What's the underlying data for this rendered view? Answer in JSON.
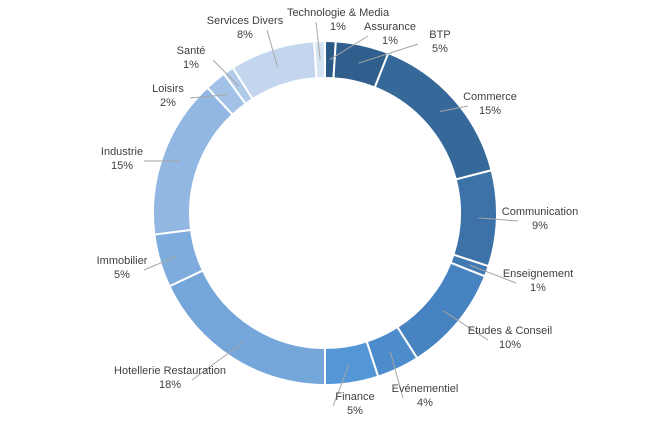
{
  "chart_data": {
    "type": "pie",
    "variant": "donut",
    "categories": [
      "Assurance",
      "BTP",
      "Commerce",
      "Communication",
      "Enseignement",
      "Etudes & Conseil",
      "Evénementiel",
      "Finance",
      "Hotellerie Restauration",
      "Immobilier",
      "Industrie",
      "Loisirs",
      "Santé",
      "Services Divers",
      "Technologie & Media"
    ],
    "values": [
      1,
      5,
      15,
      9,
      1,
      10,
      4,
      5,
      18,
      5,
      15,
      2,
      1,
      8,
      1
    ],
    "value_labels": [
      "1%",
      "5%",
      "15%",
      "9%",
      "1%",
      "10%",
      "4%",
      "5%",
      "18%",
      "5%",
      "15%",
      "2%",
      "1%",
      "8%",
      "1%"
    ],
    "colors": [
      "#2b5a86",
      "#305f8e",
      "#36689a",
      "#3d72a9",
      "#4179b3",
      "#4783c0",
      "#4d8ccb",
      "#5497d6",
      "#75a6da",
      "#7eaddd",
      "#93b7e3",
      "#a2c1e7",
      "#b0cae9",
      "#c3d6ee",
      "#d6e3f3"
    ],
    "start_angle_deg": 0,
    "direction": "clockwise",
    "legend": "none"
  }
}
